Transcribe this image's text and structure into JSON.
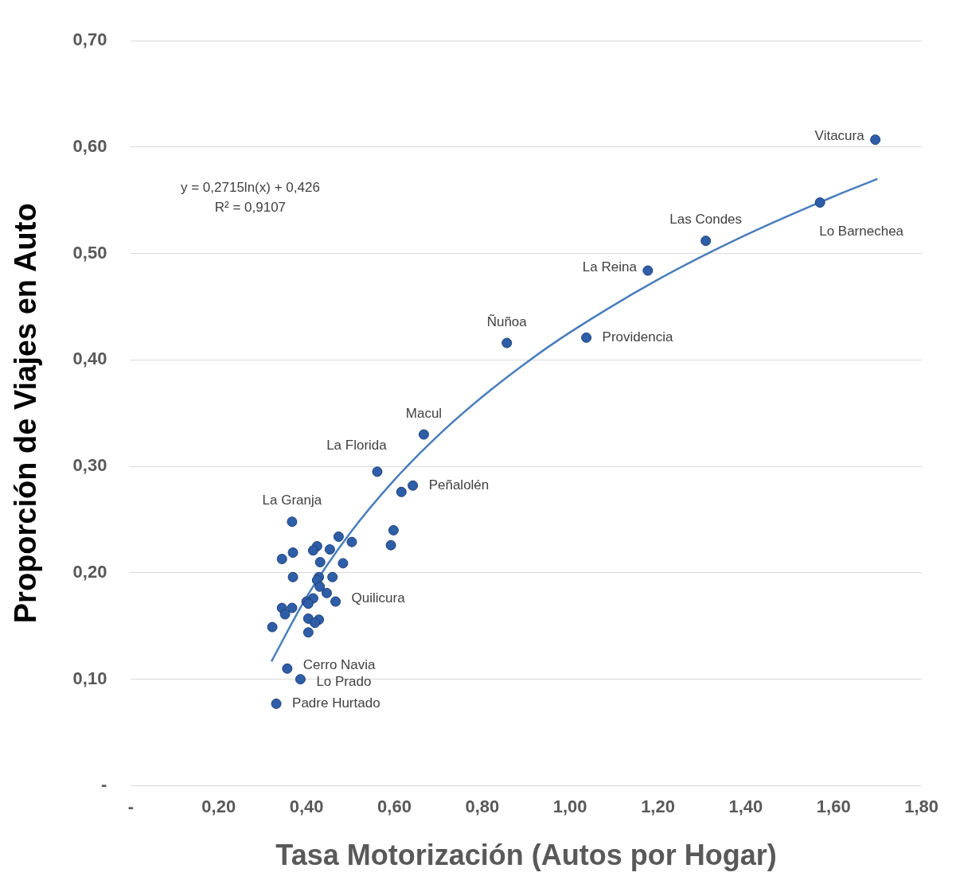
{
  "chart_data": {
    "type": "scatter",
    "xlabel": "Tasa Motorización (Autos por Hogar)",
    "ylabel": "Proporción de Viajes en Auto",
    "x": [
      1.695,
      1.569,
      1.309,
      1.177,
      1.037,
      0.856,
      0.667,
      0.561,
      0.642,
      0.616,
      0.598,
      0.592,
      0.367,
      0.473,
      0.503,
      0.424,
      0.415,
      0.453,
      0.369,
      0.344,
      0.431,
      0.483,
      0.369,
      0.428,
      0.459,
      0.424,
      0.43,
      0.446,
      0.466,
      0.415,
      0.4,
      0.404,
      0.344,
      0.367,
      0.351,
      0.404,
      0.428,
      0.419,
      0.322,
      0.404,
      0.356,
      0.386,
      0.331
    ],
    "series": [
      {
        "type": "scatter",
        "color": "#2f5ea8",
        "values": [
          0.607,
          0.548,
          0.512,
          0.484,
          0.421,
          0.416,
          0.33,
          0.295,
          0.282,
          0.276,
          0.24,
          0.226,
          0.248,
          0.234,
          0.229,
          0.225,
          0.221,
          0.222,
          0.219,
          0.213,
          0.21,
          0.209,
          0.196,
          0.196,
          0.196,
          0.193,
          0.187,
          0.181,
          0.173,
          0.176,
          0.173,
          0.171,
          0.167,
          0.167,
          0.161,
          0.157,
          0.156,
          0.153,
          0.149,
          0.144,
          0.11,
          0.1,
          0.077
        ]
      },
      {
        "type": "line",
        "color": "#4a7ebb",
        "marker": "none",
        "x": [
          0.32,
          0.4,
          0.5,
          0.6,
          0.7,
          0.8,
          0.9,
          1.0,
          1.2,
          1.4,
          1.6,
          1.7
        ],
        "values": [
          0.1167,
          0.1772,
          0.2378,
          0.2873,
          0.3292,
          0.3654,
          0.3974,
          0.426,
          0.4755,
          0.5174,
          0.5536,
          0.5701
        ]
      }
    ],
    "xlim": [
      0,
      1.8
    ],
    "xticks": [
      {
        "value": 0,
        "label": "-"
      },
      {
        "value": 0.2,
        "label": "0,20"
      },
      {
        "value": 0.4,
        "label": "0,40"
      },
      {
        "value": 0.6,
        "label": "0,60"
      },
      {
        "value": 0.8,
        "label": "0,80"
      },
      {
        "value": 1.0,
        "label": "1,00"
      },
      {
        "value": 1.2,
        "label": "1,20"
      },
      {
        "value": 1.4,
        "label": "1,40"
      },
      {
        "value": 1.6,
        "label": "1,60"
      },
      {
        "value": 1.8,
        "label": "1,80"
      }
    ],
    "ylim": [
      0,
      0.7
    ],
    "yticks": [
      {
        "value": 0,
        "label": "-"
      },
      {
        "value": 0.1,
        "label": "0,10"
      },
      {
        "value": 0.2,
        "label": "0,20"
      },
      {
        "value": 0.3,
        "label": "0,30"
      },
      {
        "value": 0.4,
        "label": "0,40"
      },
      {
        "value": 0.5,
        "label": "0,50"
      },
      {
        "value": 0.6,
        "label": "0,60"
      },
      {
        "value": 0.7,
        "label": "0,70"
      }
    ],
    "grid": "y",
    "marker": "circle",
    "legend": false,
    "annotations": [
      {
        "text": "Vitacura",
        "x": 1.695,
        "y": 0.607
      },
      {
        "text": "Lo Barnechea",
        "x": 1.569,
        "y": 0.548
      },
      {
        "text": "Las Condes",
        "x": 1.309,
        "y": 0.512
      },
      {
        "text": "La Reina",
        "x": 1.177,
        "y": 0.484
      },
      {
        "text": "Providencia",
        "x": 1.037,
        "y": 0.421
      },
      {
        "text": "Ñuñoa",
        "x": 0.856,
        "y": 0.416
      },
      {
        "text": "Macul",
        "x": 0.667,
        "y": 0.33
      },
      {
        "text": "La Florida",
        "x": 0.561,
        "y": 0.295
      },
      {
        "text": "Peñalolén",
        "x": 0.642,
        "y": 0.282
      },
      {
        "text": "La Granja",
        "x": 0.367,
        "y": 0.248
      },
      {
        "text": "Quilicura",
        "x": 0.466,
        "y": 0.173
      },
      {
        "text": "Cerro Navia",
        "x": 0.356,
        "y": 0.11
      },
      {
        "text": "Lo Prado",
        "x": 0.386,
        "y": 0.1
      },
      {
        "text": "Padre Hurtado",
        "x": 0.331,
        "y": 0.077
      },
      "y = 0,2715ln(x) + 0,426",
      "R² = 0,9107"
    ]
  }
}
